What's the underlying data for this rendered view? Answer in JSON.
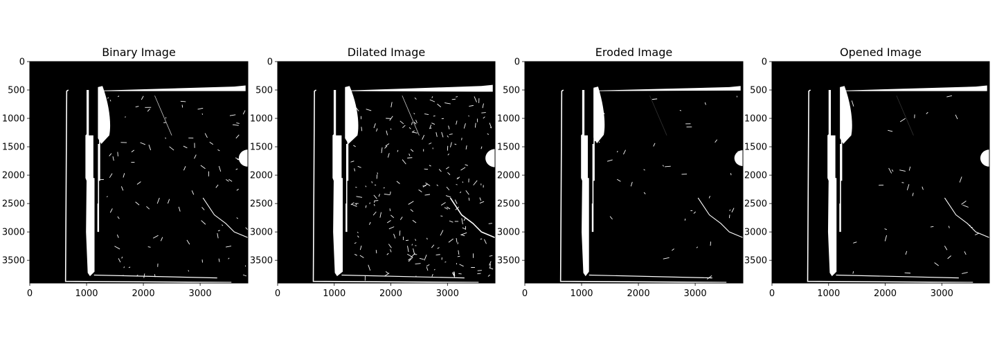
{
  "chart_data": [
    {
      "type": "image",
      "title": "Binary Image",
      "xticks": [
        "0",
        "1000",
        "2000",
        "3000"
      ],
      "yticks": [
        "0",
        "500",
        "1000",
        "1500",
        "2000",
        "2500",
        "3000",
        "3500"
      ],
      "xlim": [
        0,
        3840
      ],
      "ylim": [
        3900,
        0
      ],
      "colormap": "gray",
      "features": {
        "outer_frame_left_x": 650,
        "outer_frame_bottom_y": 3870,
        "bar_x": [
          1000,
          1100
        ],
        "bar_y": [
          500,
          3800
        ],
        "blob": {
          "x": [
            1200,
            1400
          ],
          "y": [
            450,
            1450
          ]
        },
        "top_strip": {
          "x": [
            1250,
            3800
          ],
          "y": [
            440,
            520
          ]
        },
        "right_blob": {
          "x": [
            3680,
            3840
          ],
          "y": [
            1550,
            1850
          ]
        },
        "crack": [
          [
            3050,
            2400
          ],
          [
            3250,
            2700
          ],
          [
            3450,
            2850
          ],
          [
            3600,
            3000
          ],
          [
            3840,
            3100
          ]
        ],
        "noise_level": "medium"
      }
    },
    {
      "type": "image",
      "title": "Dilated Image",
      "xticks": [
        "0",
        "1000",
        "2000",
        "3000"
      ],
      "yticks": [
        "0",
        "500",
        "1000",
        "1500",
        "2000",
        "2500",
        "3000",
        "3500"
      ],
      "xlim": [
        0,
        3840
      ],
      "ylim": [
        3900,
        0
      ],
      "colormap": "gray",
      "features": {
        "outer_frame_left_x": 650,
        "outer_frame_bottom_y": 3870,
        "bar_x": [
          990,
          1110
        ],
        "bar_y": [
          500,
          3800
        ],
        "blob": {
          "x": [
            1190,
            1410
          ],
          "y": [
            450,
            1450
          ]
        },
        "top_strip": {
          "x": [
            1250,
            3800
          ],
          "y": [
            430,
            530
          ]
        },
        "right_blob": {
          "x": [
            3670,
            3840
          ],
          "y": [
            1540,
            1860
          ]
        },
        "crack": [
          [
            3050,
            2400
          ],
          [
            3250,
            2700
          ],
          [
            3450,
            2850
          ],
          [
            3600,
            3000
          ],
          [
            3840,
            3100
          ]
        ],
        "noise_level": "high"
      }
    },
    {
      "type": "image",
      "title": "Eroded Image",
      "xticks": [
        "0",
        "1000",
        "2000",
        "3000"
      ],
      "yticks": [
        "0",
        "500",
        "1000",
        "1500",
        "2000",
        "2500",
        "3000",
        "3500"
      ],
      "xlim": [
        0,
        3840
      ],
      "ylim": [
        3900,
        0
      ],
      "colormap": "gray",
      "features": {
        "outer_frame_left_x": 650,
        "outer_frame_bottom_y": 3870,
        "bar_x": [
          1010,
          1090
        ],
        "bar_y": [
          500,
          3800
        ],
        "blob": {
          "x": [
            1210,
            1390
          ],
          "y": [
            460,
            1440
          ]
        },
        "top_strip": {
          "x": [
            1250,
            3800
          ],
          "y": [
            450,
            510
          ]
        },
        "right_blob": {
          "x": [
            3690,
            3840
          ],
          "y": [
            1560,
            1840
          ]
        },
        "crack": [
          [
            3050,
            2400
          ],
          [
            3250,
            2700
          ],
          [
            3450,
            2850
          ],
          [
            3600,
            3000
          ],
          [
            3840,
            3100
          ]
        ],
        "noise_level": "low"
      }
    },
    {
      "type": "image",
      "title": "Opened Image",
      "xticks": [
        "0",
        "1000",
        "2000",
        "3000"
      ],
      "yticks": [
        "0",
        "500",
        "1000",
        "1500",
        "2000",
        "2500",
        "3000",
        "3500"
      ],
      "xlim": [
        0,
        3840
      ],
      "ylim": [
        3900,
        0
      ],
      "colormap": "gray",
      "features": {
        "outer_frame_left_x": 650,
        "outer_frame_bottom_y": 3870,
        "bar_x": [
          1000,
          1100
        ],
        "bar_y": [
          500,
          3800
        ],
        "blob": {
          "x": [
            1200,
            1400
          ],
          "y": [
            450,
            1450
          ]
        },
        "top_strip": {
          "x": [
            1250,
            3800
          ],
          "y": [
            440,
            520
          ]
        },
        "right_blob": {
          "x": [
            3680,
            3840
          ],
          "y": [
            1550,
            1850
          ]
        },
        "crack": [
          [
            3050,
            2400
          ],
          [
            3250,
            2700
          ],
          [
            3450,
            2850
          ],
          [
            3600,
            3000
          ],
          [
            3840,
            3100
          ]
        ],
        "noise_level": "low"
      }
    }
  ]
}
